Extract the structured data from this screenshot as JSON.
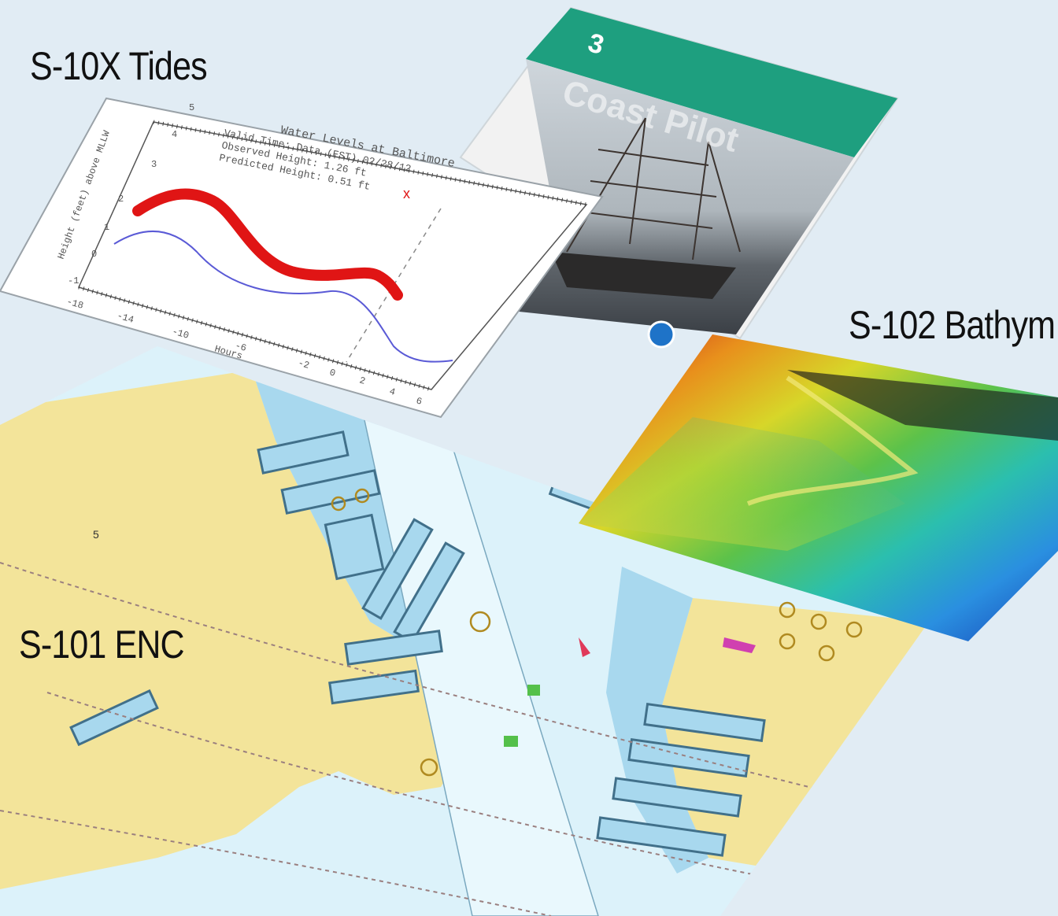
{
  "labels": {
    "tides": "S-10X Tides",
    "bathymetry": "S-102 Bathym",
    "enc": "S-101 ENC"
  },
  "tide_chart": {
    "title_lines": [
      "Water Levels at Baltimore",
      "Valid Time: Data (EST) 02/28/12",
      "Observed Height: 1.26 ft",
      "Predicted Height: 0.51 ft"
    ],
    "ylabel": "Height (feet) above MLLW",
    "xlabel": "Hours",
    "x_ticks": [
      "-18",
      "-14",
      "-10",
      "-6",
      "-2",
      "0",
      "2",
      "4",
      "6"
    ],
    "y_ticks": [
      "-1",
      "0",
      "1",
      "2",
      "3",
      "4",
      "5"
    ],
    "series": [
      {
        "label": "Observed Height",
        "color": "#e01515"
      },
      {
        "label": "Predicted Height",
        "color": "#5a5ad6"
      }
    ]
  },
  "coast_pilot": {
    "number": "3",
    "title": "Coast Pilot",
    "banner_color": "#1e9f7f"
  },
  "colors": {
    "background": "#e1ecf4",
    "land": "#f3e49a",
    "shallow_water": "#a8d8ee",
    "deep_water": "#dcf2fa",
    "tide_observed": "#e01515",
    "tide_predicted": "#5a5ad6"
  }
}
